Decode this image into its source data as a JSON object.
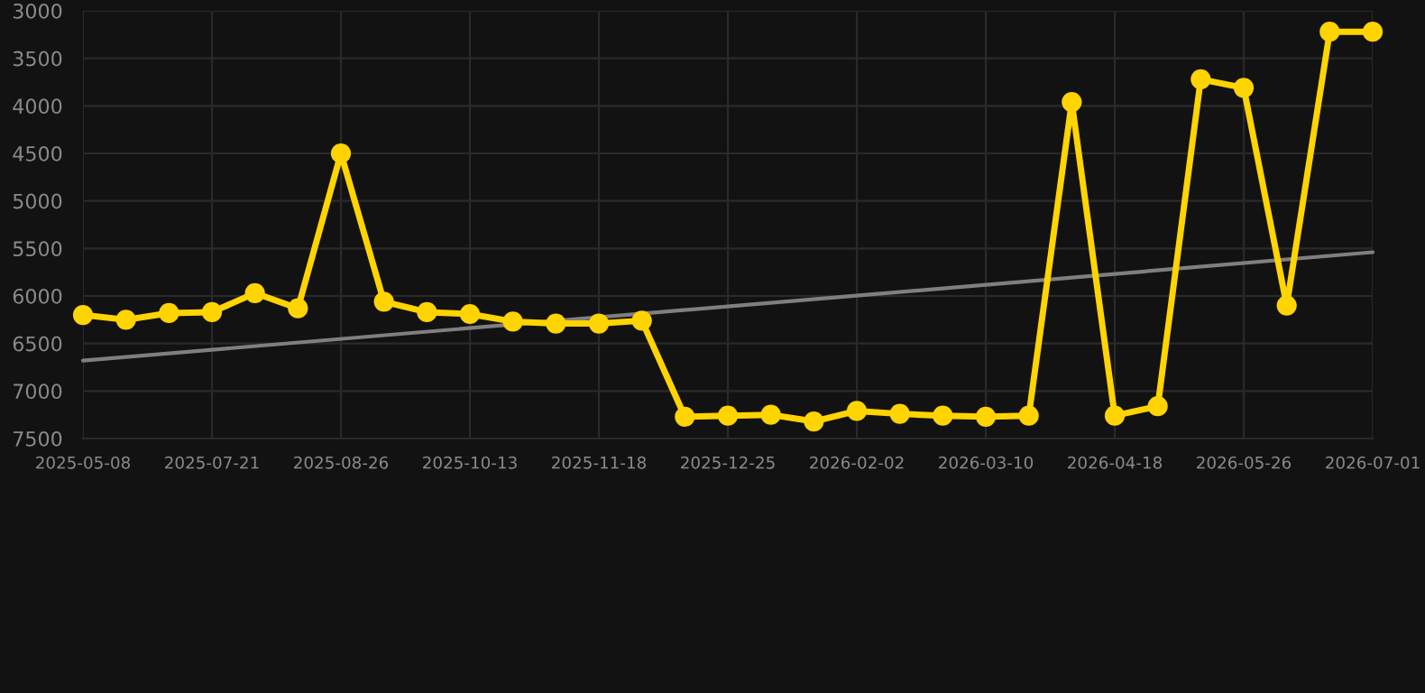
{
  "chart_data": {
    "type": "line",
    "categories": [
      "2025-05-08",
      null,
      null,
      "2025-07-21",
      null,
      null,
      "2025-08-26",
      null,
      null,
      "2025-10-13",
      null,
      null,
      "2025-11-18",
      null,
      null,
      "2025-12-25",
      null,
      null,
      "2026-02-02",
      null,
      null,
      "2026-03-10",
      null,
      null,
      "2026-04-18",
      null,
      null,
      "2026-05-26",
      null,
      null,
      "2026-07-01"
    ],
    "series": [
      {
        "color": "#ffd400",
        "marker": "circle",
        "values": [
          6200,
          6250,
          6180,
          6170,
          5970,
          6130,
          4500,
          6060,
          6170,
          6190,
          6270,
          6290,
          6290,
          6260,
          7270,
          7260,
          7250,
          7320,
          7210,
          7240,
          7260,
          7270,
          7260,
          3960,
          7260,
          7160,
          3720,
          3810,
          6100,
          3220,
          3220
        ]
      },
      {
        "color": "#7f7f7f",
        "values": [
          6680,
          null,
          null,
          null,
          null,
          null,
          null,
          null,
          null,
          null,
          null,
          null,
          null,
          null,
          null,
          null,
          null,
          null,
          null,
          null,
          null,
          null,
          null,
          null,
          null,
          null,
          null,
          null,
          null,
          null,
          5540
        ]
      }
    ],
    "ylim": [
      7500,
      3000
    ],
    "yticks": [
      3000,
      3500,
      4000,
      4500,
      5000,
      5500,
      6000,
      6500,
      7000,
      7500
    ],
    "grid": true
  }
}
